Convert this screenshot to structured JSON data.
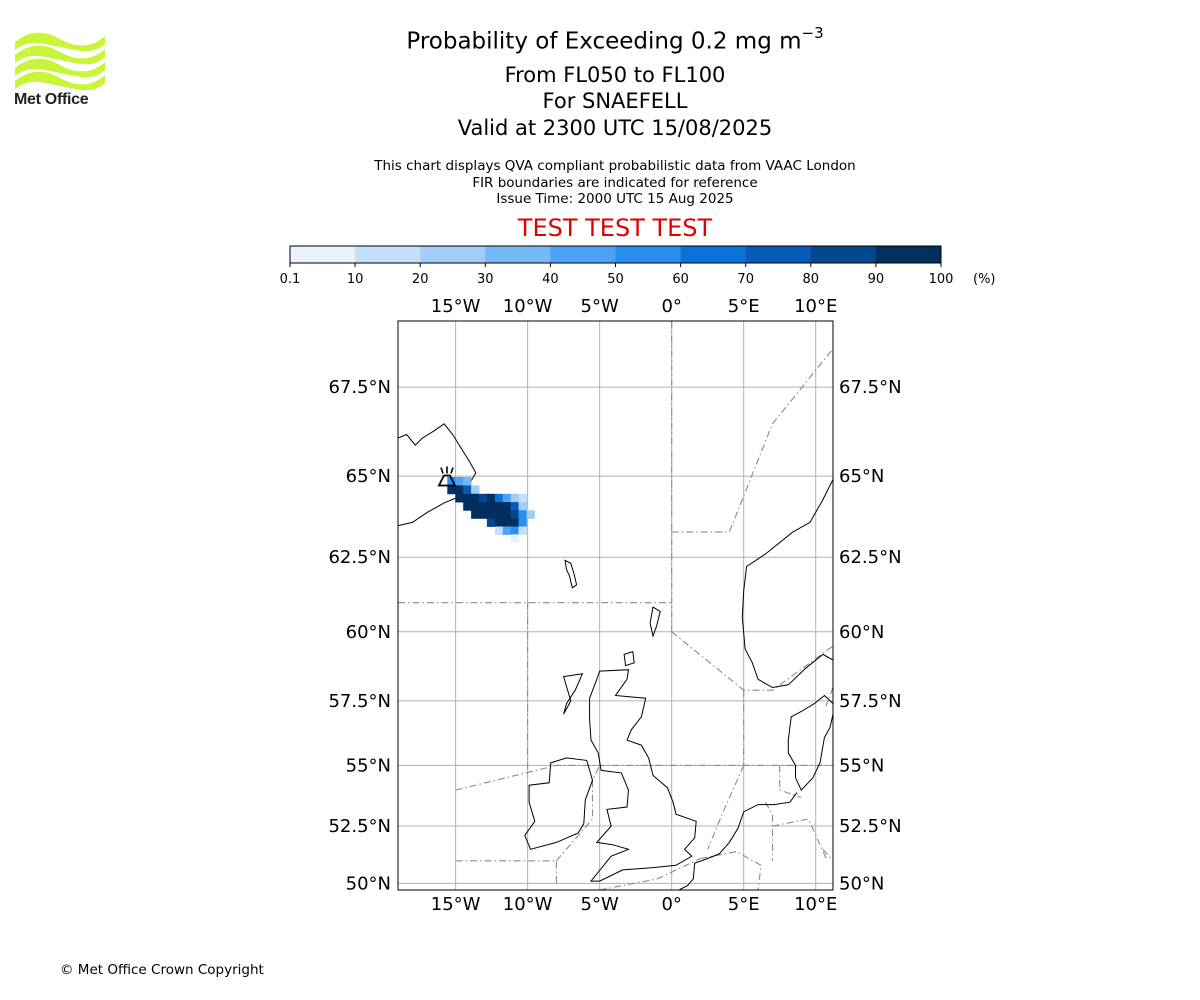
{
  "header": {
    "title_prefix": "Probability of Exceeding 0.2 mg m",
    "title_exponent": "−3",
    "flight_levels": "From FL050 to FL100",
    "volcano": "For SNAEFELL",
    "valid": "Valid at 2300 UTC 15/08/2025",
    "description_lines": [
      "This chart displays QVA compliant probabilistic data from VAAC London",
      "FIR boundaries are indicated for reference",
      "Issue Time: 2000 UTC 15 Aug 2025"
    ],
    "test_banner": "TEST TEST TEST"
  },
  "logo": {
    "text": "Met Office",
    "wave_color": "#c8f53a"
  },
  "colorbar": {
    "tick_labels": [
      "0.1",
      "10",
      "20",
      "30",
      "40",
      "50",
      "60",
      "70",
      "80",
      "90",
      "100"
    ],
    "unit": "(%)",
    "colors": [
      "#e8f1fc",
      "#c7e0f9",
      "#a2cdf7",
      "#78b7f5",
      "#4ea2f5",
      "#2a8ef0",
      "#0c72d8",
      "#055bb7",
      "#03478e",
      "#012f60"
    ]
  },
  "map": {
    "extent": {
      "lon_min": -19,
      "lon_max": 11.2,
      "lat_min": 49.7,
      "lat_max": 69.2
    },
    "lon_ticks": [
      {
        "lon": -15,
        "label": "15°W"
      },
      {
        "lon": -10,
        "label": "10°W"
      },
      {
        "lon": -5,
        "label": "5°W"
      },
      {
        "lon": 0,
        "label": "0°"
      },
      {
        "lon": 5,
        "label": "5°E"
      },
      {
        "lon": 10,
        "label": "10°E"
      }
    ],
    "lat_ticks": [
      {
        "lat": 67.5,
        "label": "67.5°N"
      },
      {
        "lat": 65,
        "label": "65°N"
      },
      {
        "lat": 62.5,
        "label": "62.5°N"
      },
      {
        "lat": 60,
        "label": "60°N"
      },
      {
        "lat": 57.5,
        "label": "57.5°N"
      },
      {
        "lat": 55,
        "label": "55°N"
      },
      {
        "lat": 52.5,
        "label": "52.5°N"
      },
      {
        "lat": 50,
        "label": "50°N"
      }
    ],
    "grid_color": "#b0b0b0",
    "fir_color": "#8a8a8a",
    "volcano_location": {
      "lon": -15.6,
      "lat": 64.9
    },
    "probability_cells": [
      {
        "lon": -15.3,
        "lat": 64.85,
        "p": 55
      },
      {
        "lon": -14.75,
        "lat": 64.85,
        "p": 40
      },
      {
        "lon": -14.2,
        "lat": 64.85,
        "p": 30
      },
      {
        "lon": -15.3,
        "lat": 64.6,
        "p": 95
      },
      {
        "lon": -14.75,
        "lat": 64.6,
        "p": 90
      },
      {
        "lon": -14.2,
        "lat": 64.6,
        "p": 70
      },
      {
        "lon": -13.65,
        "lat": 64.6,
        "p": 20
      },
      {
        "lon": -14.75,
        "lat": 64.35,
        "p": 95
      },
      {
        "lon": -14.2,
        "lat": 64.35,
        "p": 95
      },
      {
        "lon": -13.65,
        "lat": 64.35,
        "p": 95
      },
      {
        "lon": -13.1,
        "lat": 64.35,
        "p": 85
      },
      {
        "lon": -12.55,
        "lat": 64.35,
        "p": 95
      },
      {
        "lon": -12.0,
        "lat": 64.35,
        "p": 60
      },
      {
        "lon": -11.45,
        "lat": 64.35,
        "p": 40
      },
      {
        "lon": -10.9,
        "lat": 64.35,
        "p": 20
      },
      {
        "lon": -10.35,
        "lat": 64.35,
        "p": 15
      },
      {
        "lon": -14.2,
        "lat": 64.1,
        "p": 95
      },
      {
        "lon": -13.65,
        "lat": 64.1,
        "p": 95
      },
      {
        "lon": -13.1,
        "lat": 64.1,
        "p": 95
      },
      {
        "lon": -12.55,
        "lat": 64.1,
        "p": 95
      },
      {
        "lon": -12.0,
        "lat": 64.1,
        "p": 95
      },
      {
        "lon": -11.45,
        "lat": 64.1,
        "p": 95
      },
      {
        "lon": -10.9,
        "lat": 64.1,
        "p": 75
      },
      {
        "lon": -10.35,
        "lat": 64.1,
        "p": 25
      },
      {
        "lon": -13.65,
        "lat": 63.85,
        "p": 90
      },
      {
        "lon": -13.1,
        "lat": 63.85,
        "p": 95
      },
      {
        "lon": -12.55,
        "lat": 63.85,
        "p": 95
      },
      {
        "lon": -12.0,
        "lat": 63.85,
        "p": 95
      },
      {
        "lon": -11.45,
        "lat": 63.85,
        "p": 95
      },
      {
        "lon": -10.9,
        "lat": 63.85,
        "p": 85
      },
      {
        "lon": -10.35,
        "lat": 63.85,
        "p": 55
      },
      {
        "lon": -9.8,
        "lat": 63.85,
        "p": 25
      },
      {
        "lon": -12.55,
        "lat": 63.6,
        "p": 80
      },
      {
        "lon": -12.0,
        "lat": 63.6,
        "p": 95
      },
      {
        "lon": -11.45,
        "lat": 63.6,
        "p": 95
      },
      {
        "lon": -10.9,
        "lat": 63.6,
        "p": 90
      },
      {
        "lon": -10.35,
        "lat": 63.6,
        "p": 55
      },
      {
        "lon": -12.0,
        "lat": 63.35,
        "p": 15
      },
      {
        "lon": -11.45,
        "lat": 63.35,
        "p": 40
      },
      {
        "lon": -10.9,
        "lat": 63.35,
        "p": 50
      },
      {
        "lon": -10.35,
        "lat": 63.35,
        "p": 15
      },
      {
        "lon": -10.9,
        "lat": 63.1,
        "p": 5
      }
    ]
  },
  "footer": {
    "copyright": "© Met Office Crown Copyright"
  }
}
